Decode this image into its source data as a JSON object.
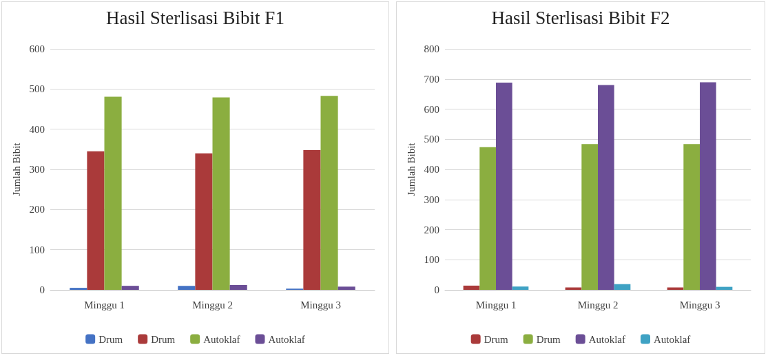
{
  "chart_data": [
    {
      "type": "bar",
      "title": "Hasil Sterlisasi Bibit F1",
      "ylabel": "Jumlah Bibit",
      "categories": [
        "Minggu 1",
        "Minggu 2",
        "Minggu 3"
      ],
      "series": [
        {
          "name": "Drum",
          "color": "#4472c4",
          "values": [
            5,
            10,
            3
          ]
        },
        {
          "name": "Drum",
          "color": "#aa3a3a",
          "values": [
            345,
            340,
            348
          ]
        },
        {
          "name": "Autoklaf",
          "color": "#8bae40",
          "values": [
            481,
            479,
            483
          ]
        },
        {
          "name": "Autoklaf",
          "color": "#6b4e96",
          "values": [
            10,
            12,
            8
          ]
        }
      ],
      "ylim": [
        0,
        600
      ],
      "yticks": [
        0,
        100,
        200,
        300,
        400,
        500,
        600
      ],
      "grid": "y",
      "legend": "bottom"
    },
    {
      "type": "bar",
      "title": "Hasil Sterlisasi Bibit F2",
      "ylabel": "Jumlah Bibit",
      "categories": [
        "Minggu 1",
        "Minggu 2",
        "Minggu 3"
      ],
      "series": [
        {
          "name": "Drum",
          "color": "#aa3a3a",
          "values": [
            14,
            8,
            8
          ]
        },
        {
          "name": "Drum",
          "color": "#8bae40",
          "values": [
            474,
            484,
            484
          ]
        },
        {
          "name": "Autoklaf",
          "color": "#6b4e96",
          "values": [
            688,
            680,
            689
          ]
        },
        {
          "name": "Autoklaf",
          "color": "#3fa2c4",
          "values": [
            11,
            19,
            10
          ]
        }
      ],
      "ylim": [
        0,
        800
      ],
      "yticks": [
        0,
        100,
        200,
        300,
        400,
        500,
        600,
        700,
        800
      ],
      "grid": "y",
      "legend": "bottom"
    }
  ]
}
